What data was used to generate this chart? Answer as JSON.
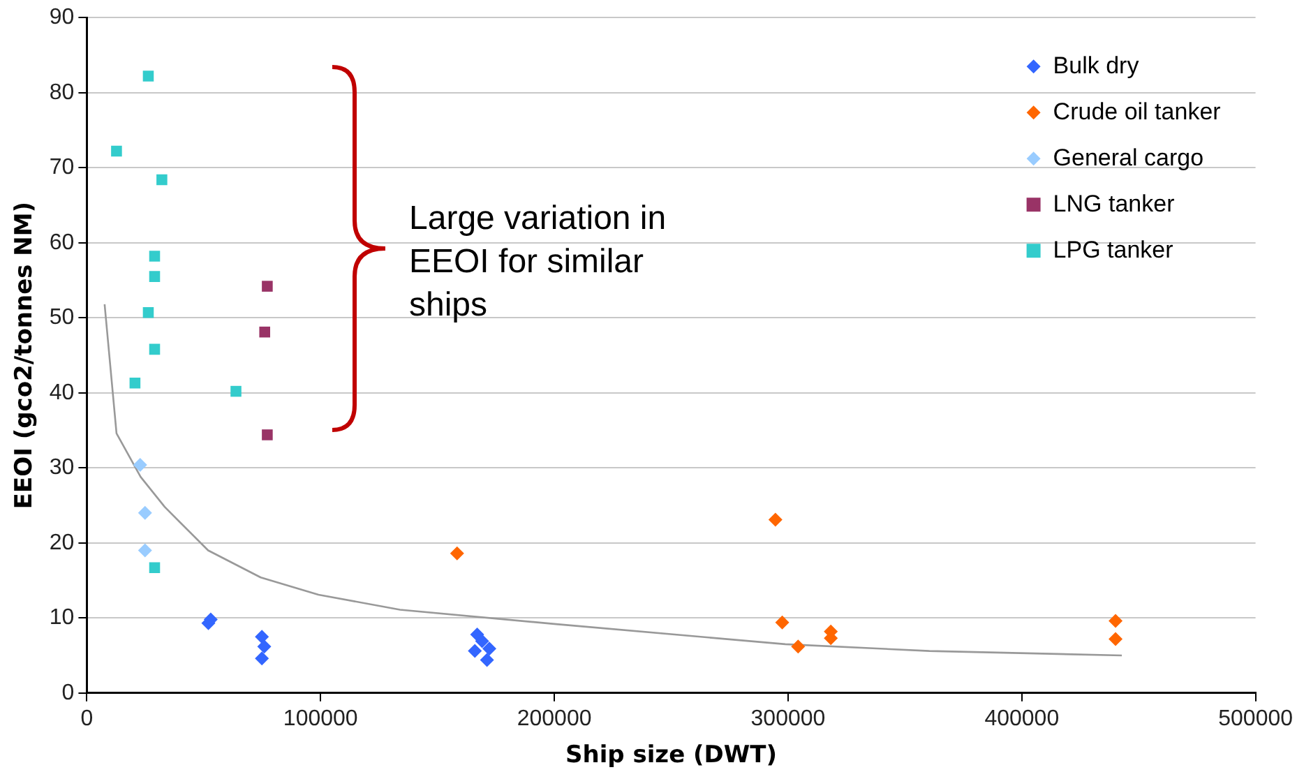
{
  "chart_data": {
    "type": "scatter",
    "xlabel": "Ship size (DWT)",
    "ylabel": "EEOI (gco2/tonnes NM)",
    "xlim": [
      0,
      500000
    ],
    "xticks": [
      0,
      100000,
      200000,
      300000,
      400000,
      500000
    ],
    "ylim": [
      0,
      90
    ],
    "yticks": [
      0,
      10,
      20,
      30,
      40,
      50,
      60,
      70,
      80,
      90
    ],
    "grid": "y",
    "legend": "top right",
    "annotations": [
      "Large variation in EEOI for similar ships"
    ],
    "series": [
      {
        "name": "Bulk dry",
        "color": "#3366ff",
        "marker": "diamond",
        "x": [
          52000,
          53000,
          74900,
          75900,
          74900,
          167000,
          169100,
          172200,
          166000,
          171200
        ],
        "values": [
          9.3,
          9.8,
          7.5,
          6.2,
          4.6,
          7.8,
          6.9,
          5.9,
          5.6,
          4.4
        ]
      },
      {
        "name": "Crude oil tanker",
        "color": "#ff6600",
        "marker": "diamond",
        "x": [
          158400,
          294600,
          297500,
          304300,
          318300,
          318300,
          440100,
          440100
        ],
        "values": [
          18.6,
          23.1,
          9.4,
          6.2,
          8.2,
          7.3,
          9.6,
          7.2
        ]
      },
      {
        "name": "General cargo",
        "color": "#99ccff",
        "marker": "diamond",
        "x": [
          22800,
          24900,
          24900
        ],
        "values": [
          30.4,
          24.0,
          19.0
        ]
      },
      {
        "name": "LNG tanker",
        "color": "#993366",
        "marker": "square",
        "x": [
          77200,
          76100,
          77200
        ],
        "values": [
          54.2,
          48.1,
          34.4
        ]
      },
      {
        "name": "LPG tanker",
        "color": "#33cccc",
        "marker": "square",
        "x": [
          26300,
          12700,
          32100,
          29000,
          29000,
          26300,
          29000,
          20600,
          63800,
          29000
        ],
        "values": [
          82.2,
          72.2,
          68.4,
          58.2,
          55.5,
          50.7,
          45.8,
          41.3,
          40.2,
          16.7
        ]
      },
      {
        "type": "line",
        "color": "#999999",
        "marker": "none",
        "x": [
          7600,
          12700,
          23000,
          33300,
          51900,
          74400,
          99100,
          134000,
          200000,
          298800,
          360500,
          442800
        ],
        "values": [
          51.8,
          34.6,
          28.8,
          24.8,
          19.0,
          15.4,
          13.1,
          11.1,
          9.2,
          6.5,
          5.6,
          5.0
        ]
      }
    ]
  }
}
